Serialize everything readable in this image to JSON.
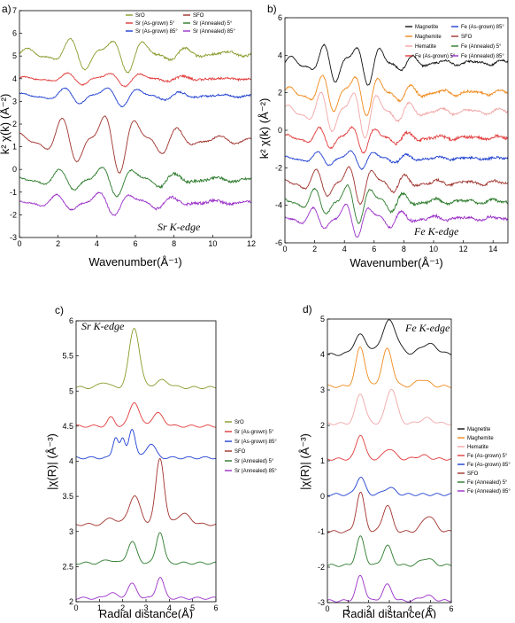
{
  "chart_data": [
    {
      "panel": "a)",
      "type": "line",
      "annotation": "Sr K-edge",
      "xlabel": "Wavenumber(Å⁻¹)",
      "ylabel": "k² χ(k)  (Å⁻²)",
      "xlim": [
        0,
        12
      ],
      "ylim": [
        -3,
        7
      ],
      "xticks": [
        0,
        2,
        4,
        6,
        8,
        10,
        12
      ],
      "yticks": [
        -3,
        -2,
        -1,
        0,
        1,
        2,
        3,
        4,
        5,
        6,
        7
      ],
      "legend_position": "top-right",
      "legend_columns": 2,
      "series": [
        {
          "name": "SrO",
          "color": "#8a9a2a",
          "offset": 5.1,
          "amp": 0.55,
          "phase": 0.0,
          "noise": 0.05
        },
        {
          "name": "Sr (As-grown) 5°",
          "color": "#e23a3a",
          "offset": 4.0,
          "amp": 0.22,
          "phase": 0.4,
          "noise": 0.05
        },
        {
          "name": "Sr (As-grown) 85°",
          "color": "#1f3fd0",
          "offset": 3.25,
          "amp": 0.3,
          "phase": 0.8,
          "noise": 0.04
        },
        {
          "name": "SFO",
          "color": "#a0322c",
          "offset": 1.3,
          "amp": 0.9,
          "phase": 1.2,
          "noise": 0.03
        },
        {
          "name": "Sr (Annealed) 5°",
          "color": "#2c7a2c",
          "offset": -0.45,
          "amp": 0.45,
          "phase": 1.6,
          "noise": 0.06
        },
        {
          "name": "Sr (Annealed) 85°",
          "color": "#9a30c8",
          "offset": -1.45,
          "amp": 0.35,
          "phase": 2.0,
          "noise": 0.06
        }
      ]
    },
    {
      "panel": "b)",
      "type": "line",
      "annotation": "Fe K-edge",
      "xlabel": "Wavenumber(Å⁻¹)",
      "ylabel": "k² χ(k)  (Å⁻²)",
      "xlim": [
        0,
        15
      ],
      "ylim": [
        -6,
        6
      ],
      "xticks": [
        0,
        2,
        4,
        6,
        8,
        10,
        12,
        14
      ],
      "yticks": [
        -6,
        -4,
        -2,
        0,
        2,
        4,
        6
      ],
      "legend_position": "top-right",
      "legend_columns": 2,
      "series": [
        {
          "name": "Magnetite",
          "color": "#111111",
          "offset": 3.6,
          "amp": 0.8,
          "phase": 0.0,
          "noise": 0.05
        },
        {
          "name": "Maghemite",
          "color": "#f08a1c",
          "offset": 2.0,
          "amp": 0.8,
          "phase": 0.3,
          "noise": 0.06
        },
        {
          "name": "Hematite",
          "color": "#f2a6a6",
          "offset": 1.0,
          "amp": 0.9,
          "phase": 0.6,
          "noise": 0.05
        },
        {
          "name": "Fe (As-grown) 5°",
          "color": "#e23a3a",
          "offset": -0.4,
          "amp": 0.5,
          "phase": 0.9,
          "noise": 0.08
        },
        {
          "name": "Fe (As-grown) 85°",
          "color": "#1f3fd0",
          "offset": -1.5,
          "amp": 0.35,
          "phase": 1.2,
          "noise": 0.06
        },
        {
          "name": "SFO",
          "color": "#a0322c",
          "offset": -2.8,
          "amp": 0.7,
          "phase": 1.5,
          "noise": 0.06
        },
        {
          "name": "Fe (Annealed) 5°",
          "color": "#2c7a2c",
          "offset": -3.8,
          "amp": 0.7,
          "phase": 1.8,
          "noise": 0.07
        },
        {
          "name": "Fe (Annealed) 85°",
          "color": "#9a30c8",
          "offset": -4.7,
          "amp": 0.6,
          "phase": 2.1,
          "noise": 0.07
        }
      ]
    },
    {
      "panel": "c)",
      "type": "line",
      "annotation": "Sr K-edge",
      "xlabel": "Radial distance(Å)",
      "ylabel": "|χ(R)|   (Å⁻³)",
      "xlim": [
        0,
        6
      ],
      "ylim": [
        2,
        6
      ],
      "xticks": [
        0,
        1,
        2,
        3,
        4,
        5,
        6
      ],
      "yticks": [
        2,
        2.5,
        3,
        3.5,
        4,
        4.5,
        5,
        5.5,
        6
      ],
      "legend_position": "right",
      "series": [
        {
          "name": "SrO",
          "color": "#8a9a2a",
          "offset": 5.05,
          "peaks": [
            [
              2.5,
              0.85,
              0.22
            ],
            [
              1.2,
              0.08,
              0.2
            ],
            [
              3.7,
              0.1,
              0.3
            ]
          ]
        },
        {
          "name": "Sr (As-grown) 5°",
          "color": "#e23a3a",
          "offset": 4.5,
          "peaks": [
            [
              2.5,
              0.35,
              0.2
            ],
            [
              1.5,
              0.12,
              0.15
            ],
            [
              3.5,
              0.18,
              0.25
            ]
          ]
        },
        {
          "name": "Sr (As-grown) 85°",
          "color": "#1f3fd0",
          "offset": 4.05,
          "peaks": [
            [
              2.4,
              0.42,
              0.14
            ],
            [
              1.7,
              0.3,
              0.12
            ],
            [
              2.0,
              0.25,
              0.1
            ],
            [
              3.2,
              0.2,
              0.2
            ]
          ]
        },
        {
          "name": "SFO",
          "color": "#a0322c",
          "offset": 3.1,
          "peaks": [
            [
              3.6,
              0.95,
              0.18
            ],
            [
              2.5,
              0.4,
              0.25
            ],
            [
              1.5,
              0.1,
              0.2
            ],
            [
              4.6,
              0.15,
              0.3
            ]
          ]
        },
        {
          "name": "Sr (Annealed) 5°",
          "color": "#2c7a2c",
          "offset": 2.55,
          "peaks": [
            [
              3.6,
              0.45,
              0.16
            ],
            [
              2.4,
              0.3,
              0.2
            ],
            [
              1.4,
              0.05,
              0.2
            ]
          ]
        },
        {
          "name": "Sr (Annealed) 85°",
          "color": "#9a30c8",
          "offset": 2.05,
          "peaks": [
            [
              3.6,
              0.3,
              0.16
            ],
            [
              2.4,
              0.2,
              0.2
            ],
            [
              1.5,
              0.08,
              0.2
            ]
          ]
        }
      ]
    },
    {
      "panel": "d)",
      "type": "line",
      "annotation": "Fe K-edge",
      "xlabel": "Radial distance(Å)",
      "ylabel": "|χ(R)|   (Å⁻³)",
      "xlim": [
        0,
        6
      ],
      "ylim": [
        -3,
        5
      ],
      "xticks": [
        0,
        1,
        2,
        3,
        4,
        5,
        6
      ],
      "yticks": [
        -3,
        -2,
        -1,
        0,
        1,
        2,
        3,
        4,
        5
      ],
      "legend_position": "right",
      "series": [
        {
          "name": "Magnetite",
          "color": "#111111",
          "offset": 4.0,
          "peaks": [
            [
              1.6,
              0.55,
              0.3
            ],
            [
              3.0,
              0.95,
              0.35
            ],
            [
              4.9,
              0.3,
              0.4
            ]
          ]
        },
        {
          "name": "Maghemite",
          "color": "#f08a1c",
          "offset": 3.1,
          "peaks": [
            [
              1.6,
              1.1,
              0.22
            ],
            [
              2.9,
              1.05,
              0.25
            ],
            [
              4.6,
              0.2,
              0.3
            ]
          ]
        },
        {
          "name": "Hematite",
          "color": "#f2a6a6",
          "offset": 2.05,
          "peaks": [
            [
              1.6,
              0.85,
              0.22
            ],
            [
              3.1,
              1.0,
              0.25
            ],
            [
              4.8,
              0.15,
              0.3
            ]
          ]
        },
        {
          "name": "Fe (As-grown) 5°",
          "color": "#e23a3a",
          "offset": 1.05,
          "peaks": [
            [
              1.6,
              0.7,
              0.2
            ],
            [
              3.0,
              0.3,
              0.25
            ],
            [
              4.6,
              0.1,
              0.3
            ]
          ]
        },
        {
          "name": "Fe (As-grown) 85°",
          "color": "#1f3fd0",
          "offset": 0.05,
          "peaks": [
            [
              1.6,
              0.5,
              0.2
            ],
            [
              3.0,
              0.2,
              0.25
            ]
          ]
        },
        {
          "name": "SFO",
          "color": "#a0322c",
          "offset": -1.0,
          "peaks": [
            [
              1.6,
              1.1,
              0.2
            ],
            [
              2.9,
              0.75,
              0.22
            ],
            [
              4.9,
              0.45,
              0.3
            ]
          ]
        },
        {
          "name": "Fe (Annealed) 5°",
          "color": "#2c7a2c",
          "offset": -1.95,
          "peaks": [
            [
              1.6,
              0.8,
              0.2
            ],
            [
              2.9,
              0.55,
              0.22
            ],
            [
              4.8,
              0.2,
              0.3
            ]
          ]
        },
        {
          "name": "Fe (Annealed) 85°",
          "color": "#9a30c8",
          "offset": -2.95,
          "peaks": [
            [
              1.6,
              0.7,
              0.2
            ],
            [
              2.9,
              0.45,
              0.22
            ],
            [
              4.8,
              0.15,
              0.3
            ]
          ]
        }
      ]
    }
  ]
}
